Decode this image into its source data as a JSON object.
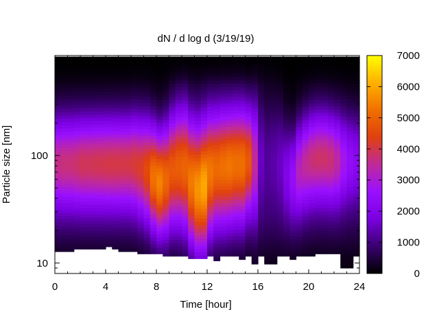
{
  "chart_data": {
    "type": "heatmap",
    "title": "dN / d log d (3/19/19)",
    "xlabel": "Time [hour]",
    "ylabel": "Particle size [nm]",
    "xlim": [
      0,
      24
    ],
    "ylim": [
      8,
      850
    ],
    "y_scale": "log",
    "x_ticks": [
      "0",
      "4",
      "8",
      "12",
      "16",
      "20",
      "24"
    ],
    "x_tick_values": [
      0,
      4,
      8,
      12,
      16,
      20,
      24
    ],
    "y_ticks": [
      "10",
      "100"
    ],
    "y_tick_values": [
      10,
      100
    ],
    "colorbar": {
      "min": 0,
      "max": 7000,
      "ticks": [
        "0",
        "1000",
        "2000",
        "3000",
        "4000",
        "5000",
        "6000",
        "7000"
      ],
      "tick_values": [
        0,
        1000,
        2000,
        3000,
        4000,
        5000,
        6000,
        7000
      ],
      "colormap": [
        "#000000",
        "#3a0070",
        "#7a00e0",
        "#9a10ff",
        "#c02a9a",
        "#e04010",
        "#f07000",
        "#ffb000",
        "#ffff00"
      ]
    },
    "times": [
      0,
      0.5,
      1,
      1.5,
      2,
      2.5,
      3,
      3.5,
      4,
      4.5,
      5,
      5.5,
      6,
      6.5,
      7,
      7.5,
      8,
      8.5,
      9,
      9.5,
      10,
      10.5,
      11,
      11.5,
      12,
      12.5,
      13,
      13.5,
      14,
      14.5,
      15,
      15.5,
      16,
      16.5,
      17,
      17.5,
      18,
      18.5,
      19,
      19.5,
      20,
      20.5,
      21,
      21.5,
      22,
      22.5,
      23,
      23.5
    ],
    "size_min_nm": [
      12.8,
      12.8,
      12.8,
      13.5,
      13.5,
      13.5,
      13.5,
      13.5,
      14.2,
      13.5,
      12.8,
      12.8,
      12.8,
      12.2,
      12.2,
      12.2,
      12.2,
      11.6,
      11.6,
      11.6,
      11.6,
      11.0,
      11.0,
      11.0,
      11.6,
      10.5,
      11.6,
      11.6,
      11.6,
      10.8,
      11.6,
      9.8,
      11.6,
      9.8,
      9.8,
      11.6,
      11.6,
      10.8,
      11.6,
      11.6,
      11.6,
      12.2,
      12.2,
      12.2,
      12.2,
      9.0,
      9.0,
      11.6
    ],
    "size_max_nm": 830,
    "peak_size_nm": [
      85,
      85,
      85,
      85,
      85,
      85,
      85,
      85,
      85,
      85,
      85,
      85,
      85,
      80,
      75,
      65,
      58,
      62,
      75,
      80,
      78,
      60,
      52,
      55,
      72,
      78,
      80,
      82,
      85,
      85,
      90,
      90,
      95,
      90,
      90,
      85,
      70,
      65,
      75,
      85,
      92,
      95,
      95,
      92,
      90,
      90,
      90,
      90
    ],
    "peak_value": [
      3600,
      3700,
      3700,
      3800,
      3900,
      3900,
      3950,
      3950,
      4000,
      4000,
      4000,
      4000,
      4100,
      4200,
      4500,
      5200,
      5400,
      5000,
      4800,
      4900,
      5000,
      5300,
      5600,
      5900,
      5300,
      5100,
      5200,
      5300,
      5200,
      5200,
      4800,
      3500,
      1500,
      1200,
      1300,
      1500,
      1900,
      2400,
      3200,
      3500,
      3700,
      3800,
      3800,
      3700,
      3400,
      2800,
      2400,
      2200
    ],
    "width_decades": [
      0.45,
      0.45,
      0.45,
      0.45,
      0.45,
      0.45,
      0.45,
      0.45,
      0.45,
      0.45,
      0.45,
      0.45,
      0.46,
      0.47,
      0.48,
      0.48,
      0.48,
      0.5,
      0.52,
      0.54,
      0.56,
      0.58,
      0.6,
      0.6,
      0.56,
      0.54,
      0.54,
      0.53,
      0.53,
      0.53,
      0.5,
      0.55,
      0.6,
      0.6,
      0.58,
      0.55,
      0.48,
      0.45,
      0.45,
      0.45,
      0.45,
      0.45,
      0.45,
      0.45,
      0.45,
      0.45,
      0.45,
      0.45
    ]
  }
}
